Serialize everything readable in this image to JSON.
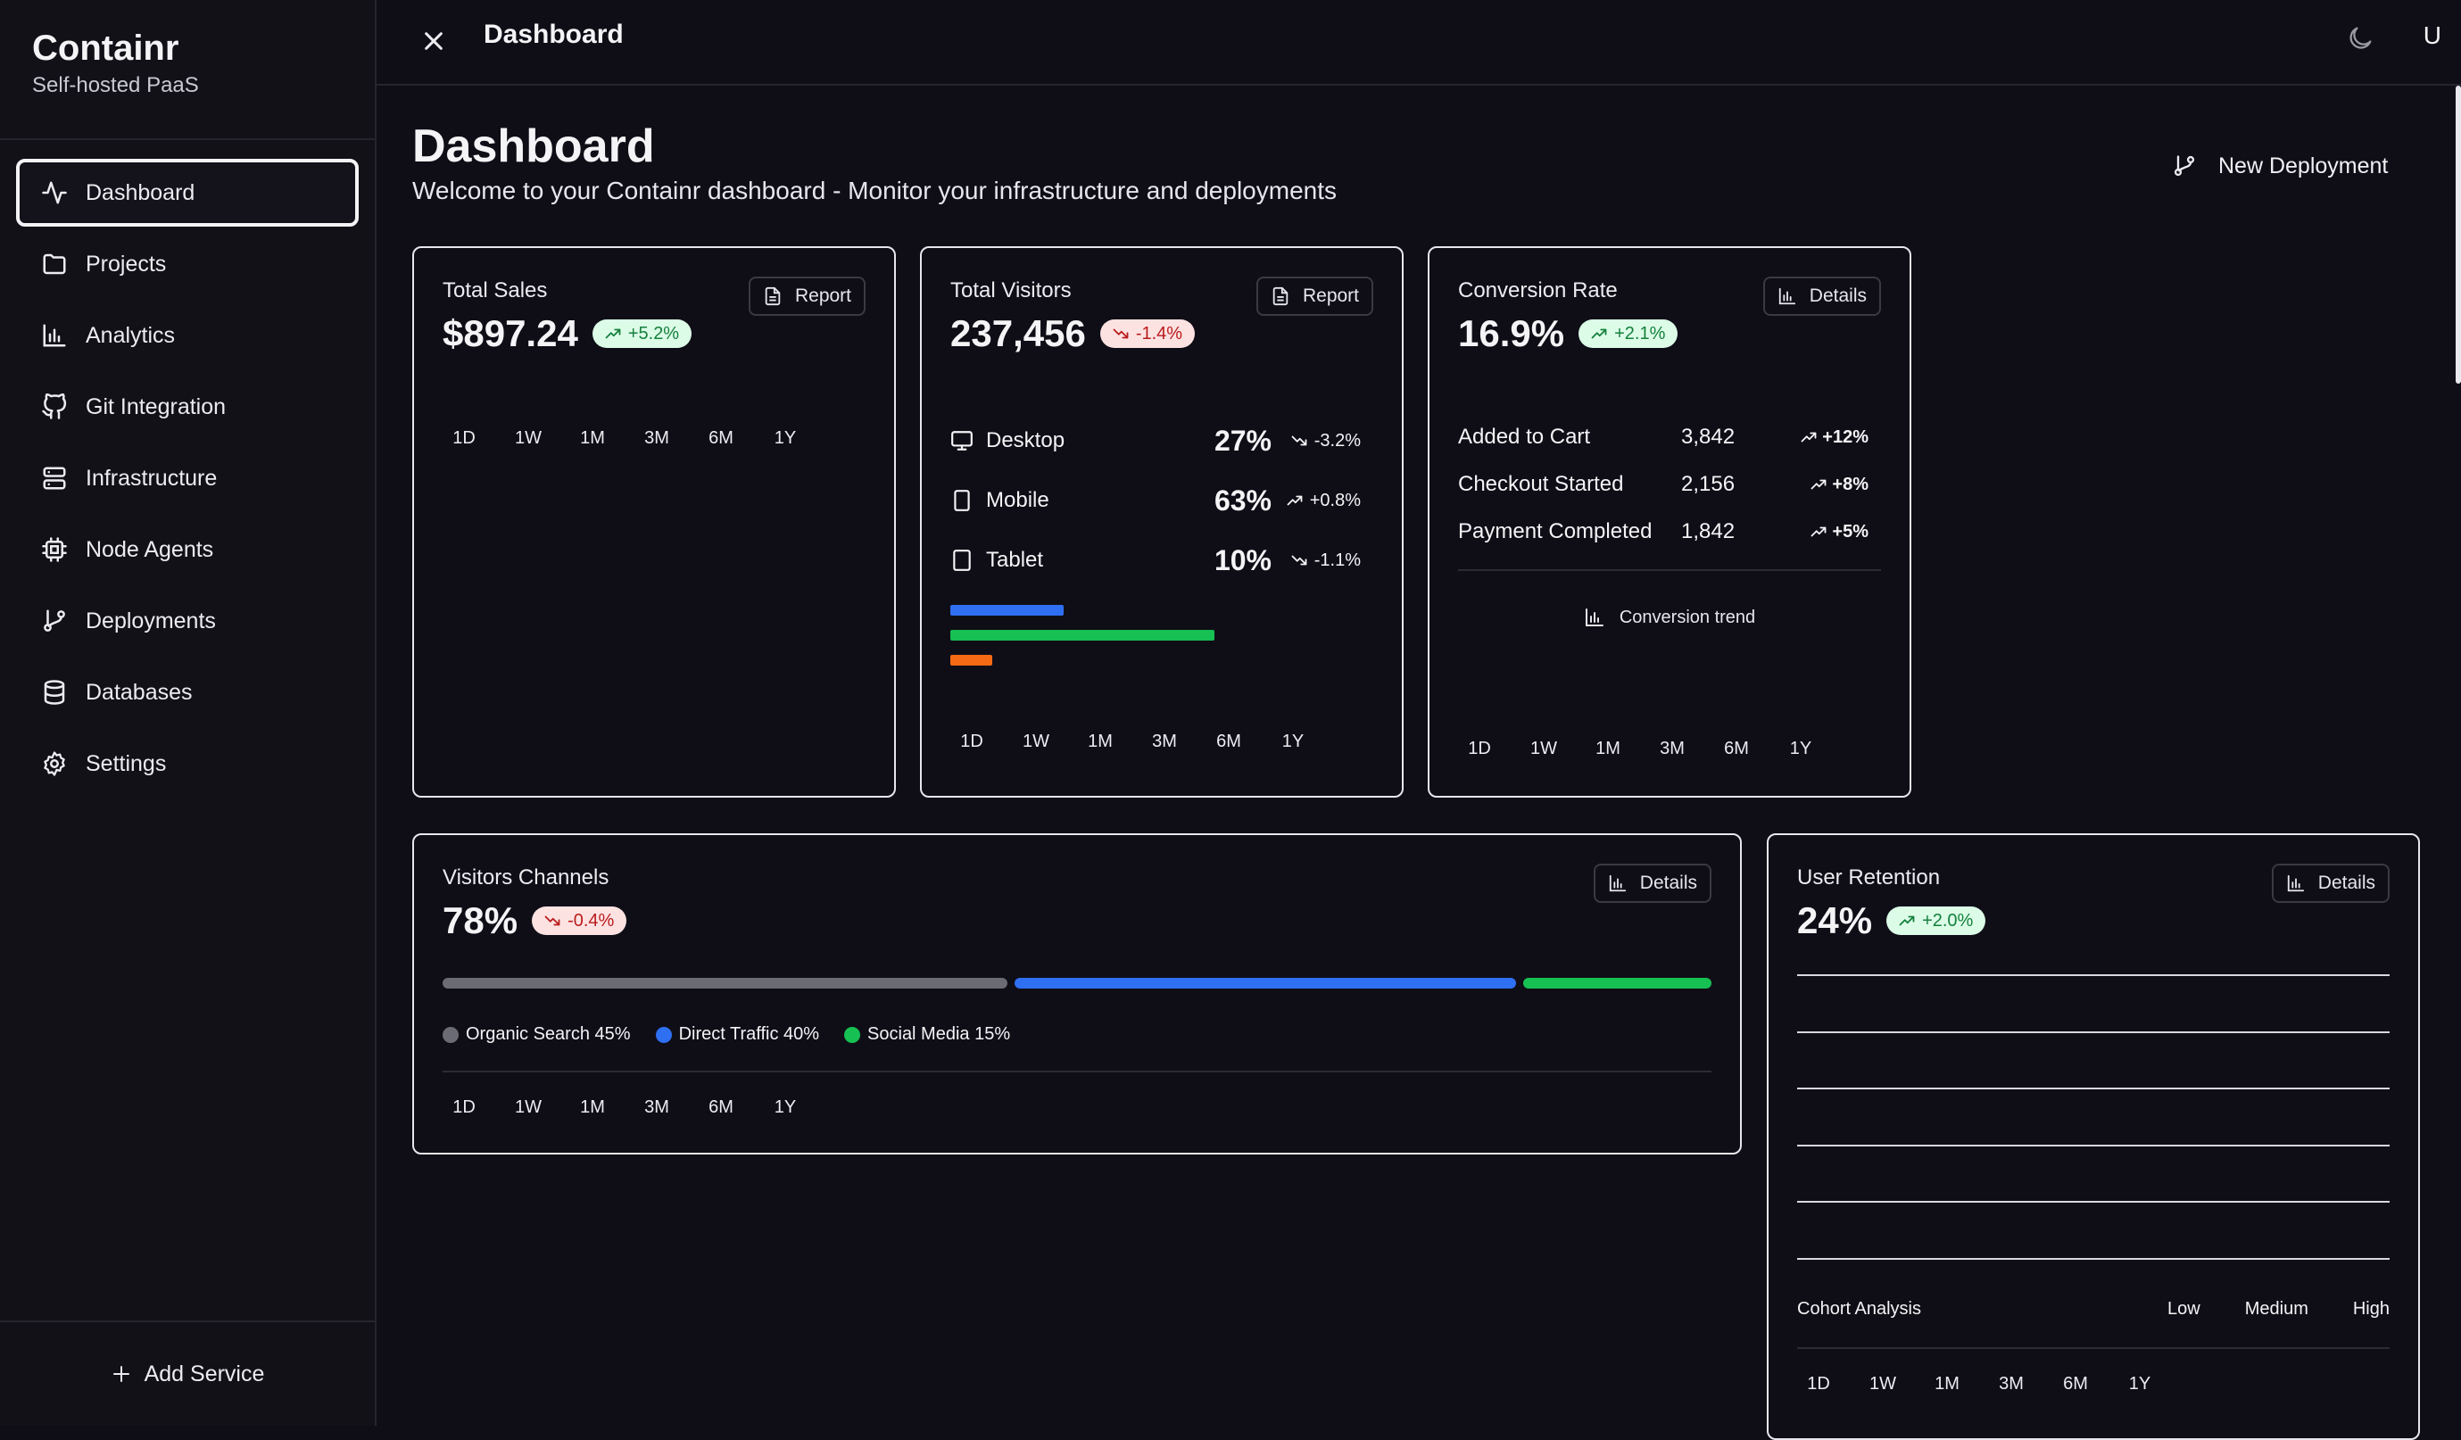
{
  "sidebar": {
    "brand_title": "Containr",
    "brand_subtitle": "Self-hosted PaaS",
    "items": [
      {
        "label": "Dashboard",
        "icon": "activity-icon",
        "active": true
      },
      {
        "label": "Projects",
        "icon": "folder-icon"
      },
      {
        "label": "Analytics",
        "icon": "bar-chart-icon"
      },
      {
        "label": "Git Integration",
        "icon": "github-icon"
      },
      {
        "label": "Infrastructure",
        "icon": "server-icon"
      },
      {
        "label": "Node Agents",
        "icon": "cpu-icon"
      },
      {
        "label": "Deployments",
        "icon": "git-branch-icon"
      },
      {
        "label": "Databases",
        "icon": "database-icon"
      },
      {
        "label": "Settings",
        "icon": "gear-icon"
      }
    ],
    "add_service": "Add Service"
  },
  "topbar": {
    "title": "Dashboard",
    "user_initial": "U"
  },
  "page": {
    "title": "Dashboard",
    "subtitle": "Welcome to your Containr dashboard - Monitor your infrastructure and deployments",
    "new_deployment": "New Deployment"
  },
  "periods": [
    "1D",
    "1W",
    "1M",
    "3M",
    "6M",
    "1Y"
  ],
  "total_sales": {
    "label": "Total Sales",
    "value": "$897.24",
    "change": "+5.2%",
    "button": "Report"
  },
  "total_visitors": {
    "label": "Total Visitors",
    "value": "237,456",
    "change": "-1.4%",
    "button": "Report",
    "devices": [
      {
        "name": "Desktop",
        "pct": "27%",
        "trend": "-3.2%",
        "share": 0.27,
        "color": "#2f6ff2"
      },
      {
        "name": "Mobile",
        "pct": "63%",
        "trend": "+0.8%",
        "share": 0.63,
        "color": "#16c052"
      },
      {
        "name": "Tablet",
        "pct": "10%",
        "trend": "-1.1%",
        "share": 0.1,
        "color": "#f56a14"
      }
    ]
  },
  "conversion": {
    "label": "Conversion Rate",
    "value": "16.9%",
    "change": "+2.1%",
    "button": "Details",
    "rows": [
      {
        "name": "Added to Cart",
        "num": "3,842",
        "trend": "+12%"
      },
      {
        "name": "Checkout Started",
        "num": "2,156",
        "trend": "+8%"
      },
      {
        "name": "Payment Completed",
        "num": "1,842",
        "trend": "+5%"
      }
    ],
    "trend_label": "Conversion trend"
  },
  "channels": {
    "label": "Visitors Channels",
    "value": "78%",
    "change": "-0.4%",
    "button": "Details",
    "items": [
      {
        "name": "Organic Search",
        "pct": "45%",
        "share": 0.45,
        "color": "#6b6b75"
      },
      {
        "name": "Direct Traffic",
        "pct": "40%",
        "share": 0.4,
        "color": "#2f6ff2"
      },
      {
        "name": "Social Media",
        "pct": "15%",
        "share": 0.15,
        "color": "#16c052"
      }
    ]
  },
  "retention": {
    "label": "User Retention",
    "value": "24%",
    "change": "+2.0%",
    "button": "Details",
    "cohort_label": "Cohort Analysis",
    "levels": [
      "Low",
      "Medium",
      "High"
    ]
  }
}
